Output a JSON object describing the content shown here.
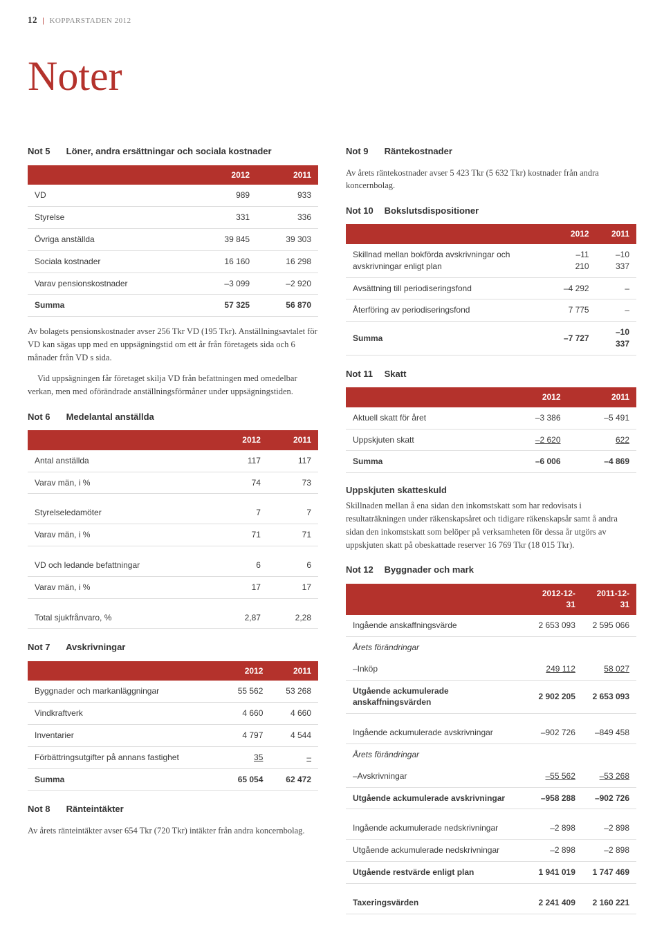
{
  "page_meta": {
    "page_num": "12",
    "bar": "|",
    "label": "KOPPARSTADEN 2012"
  },
  "main_title": "Noter",
  "colors": {
    "accent": "#b4322c",
    "text": "#3a3a3a",
    "header_bg": "#b4322c",
    "row_border": "#dddddd",
    "background": "#ffffff"
  },
  "not5": {
    "num": "Not 5",
    "title": "Löner, andra ersättningar och sociala kostnader",
    "columns": [
      "",
      "2012",
      "2011"
    ],
    "rows": [
      {
        "label": "VD",
        "a": "989",
        "b": "933"
      },
      {
        "label": "Styrelse",
        "a": "331",
        "b": "336"
      },
      {
        "label": "Övriga anställda",
        "a": "39 845",
        "b": "39 303"
      },
      {
        "label": "Sociala kostnader",
        "a": "16 160",
        "b": "16 298"
      },
      {
        "label": "Varav pensionskostnader",
        "a": "–3 099",
        "b": "–2 920"
      }
    ],
    "sum": {
      "label": "Summa",
      "a": "57 325",
      "b": "56 870"
    },
    "para1": "Av bolagets pensionskostnader avser 256 Tkr VD (195 Tkr). Anställningsavtalet för VD kan sägas upp med en uppsägningstid om ett år från företagets sida och 6 månader från VD s sida.",
    "para2": "Vid uppsägningen får företaget skilja VD från befattningen med omedelbar verkan, men med oförändrade anställningsförmåner under uppsägningstiden."
  },
  "not6": {
    "num": "Not 6",
    "title": "Medelantal anställda",
    "columns": [
      "",
      "2012",
      "2011"
    ],
    "rows": [
      {
        "label": "Antal anställda",
        "a": "117",
        "b": "117"
      },
      {
        "label": "Varav män, i %",
        "a": "74",
        "b": "73"
      },
      {
        "label": "Styrelseledamöter",
        "a": "7",
        "b": "7",
        "sp": true
      },
      {
        "label": "Varav män, i %",
        "a": "71",
        "b": "71"
      },
      {
        "label": "VD och ledande befattningar",
        "a": "6",
        "b": "6",
        "sp": true
      },
      {
        "label": "Varav män, i %",
        "a": "17",
        "b": "17"
      },
      {
        "label": "Total sjukfrånvaro, %",
        "a": "2,87",
        "b": "2,28",
        "sp": true
      }
    ]
  },
  "not7": {
    "num": "Not 7",
    "title": "Avskrivningar",
    "columns": [
      "",
      "2012",
      "2011"
    ],
    "rows": [
      {
        "label": "Byggnader och markanläggningar",
        "a": "55 562",
        "b": "53 268"
      },
      {
        "label": "Vindkraftverk",
        "a": "4 660",
        "b": "4 660"
      },
      {
        "label": "Inventarier",
        "a": "4 797",
        "b": "4 544"
      },
      {
        "label": "Förbättringsutgifter på annans fastighet",
        "a": "35",
        "b": "–",
        "u": true
      }
    ],
    "sum": {
      "label": "Summa",
      "a": "65 054",
      "b": "62 472"
    }
  },
  "not8": {
    "num": "Not 8",
    "title": "Ränteintäkter",
    "para": "Av årets ränteintäkter avser 654 Tkr (720 Tkr) intäkter från andra koncernbolag."
  },
  "not9": {
    "num": "Not 9",
    "title": "Räntekostnader",
    "para": "Av årets räntekostnader avser 5 423 Tkr (5 632 Tkr) kostnader från andra koncernbolag."
  },
  "not10": {
    "num": "Not 10",
    "title": "Bokslutsdispositioner",
    "columns": [
      "",
      "2012",
      "2011"
    ],
    "rows": [
      {
        "label": "Skillnad mellan bokförda avskrivningar och avskrivningar enligt plan",
        "a": "–11 210",
        "b": "–10 337"
      },
      {
        "label": "Avsättning till periodiseringsfond",
        "a": "–4 292",
        "b": "–"
      },
      {
        "label": "Återföring av periodiseringsfond",
        "a": "7 775",
        "b": "–"
      }
    ],
    "sum": {
      "label": "Summa",
      "a": "–7 727",
      "b": "–10 337"
    }
  },
  "not11": {
    "num": "Not 11",
    "title": "Skatt",
    "columns": [
      "",
      "2012",
      "2011"
    ],
    "rows": [
      {
        "label": "Aktuell skatt för året",
        "a": "–3 386",
        "b": "–5 491"
      },
      {
        "label": "Uppskjuten skatt",
        "a": "–2 620",
        "b": "622",
        "u": true
      }
    ],
    "sum": {
      "label": "Summa",
      "a": "–6 006",
      "b": "–4 869"
    },
    "subhead": "Uppskjuten skatteskuld",
    "para": "Skillnaden mellan å ena sidan den inkomstskatt som har redovisats i resultaträkningen under räkenskapsåret och tidigare räkenskapsår samt å andra sidan den inkomstskatt som belöper på verksamheten för dessa år utgörs av uppskjuten skatt på obeskattade reserver 16 769 Tkr (18 015 Tkr)."
  },
  "not12": {
    "num": "Not 12",
    "title": "Byggnader och mark",
    "columns": [
      "",
      "2012-12-31",
      "2011-12-31"
    ],
    "rows": [
      {
        "label": "Ingående anskaffningsvärde",
        "a": "2 653 093",
        "b": "2 595 066"
      },
      {
        "label": "Årets förändringar",
        "a": "",
        "b": "",
        "italic": true,
        "nob": true
      },
      {
        "label": "–Inköp",
        "a": "249 112",
        "b": "58 027",
        "u": true
      },
      {
        "label": "Utgående ackumulerade anskaffningsvärden",
        "a": "2 902 205",
        "b": "2 653 093",
        "bold": true
      },
      {
        "label": "Ingående ackumulerade avskrivningar",
        "a": "–902 726",
        "b": "–849 458",
        "sp": true
      },
      {
        "label": "Årets förändringar",
        "a": "",
        "b": "",
        "italic": true,
        "nob": true
      },
      {
        "label": "–Avskrivningar",
        "a": "–55 562",
        "b": "–53 268",
        "u": true
      },
      {
        "label": "Utgående ackumulerade avskrivningar",
        "a": "–958 288",
        "b": "–902 726",
        "bold": true
      },
      {
        "label": "Ingående ackumulerade nedskrivningar",
        "a": "–2 898",
        "b": "–2 898",
        "sp": true
      },
      {
        "label": "Utgående ackumulerade nedskrivningar",
        "a": "–2 898",
        "b": "–2 898"
      },
      {
        "label": "Utgående restvärde enligt plan",
        "a": "1 941 019",
        "b": "1 747 469",
        "bold": true
      },
      {
        "label": "Taxeringsvärden",
        "a": "2 241 409",
        "b": "2 160 221",
        "bold": true,
        "sp": true
      }
    ]
  }
}
